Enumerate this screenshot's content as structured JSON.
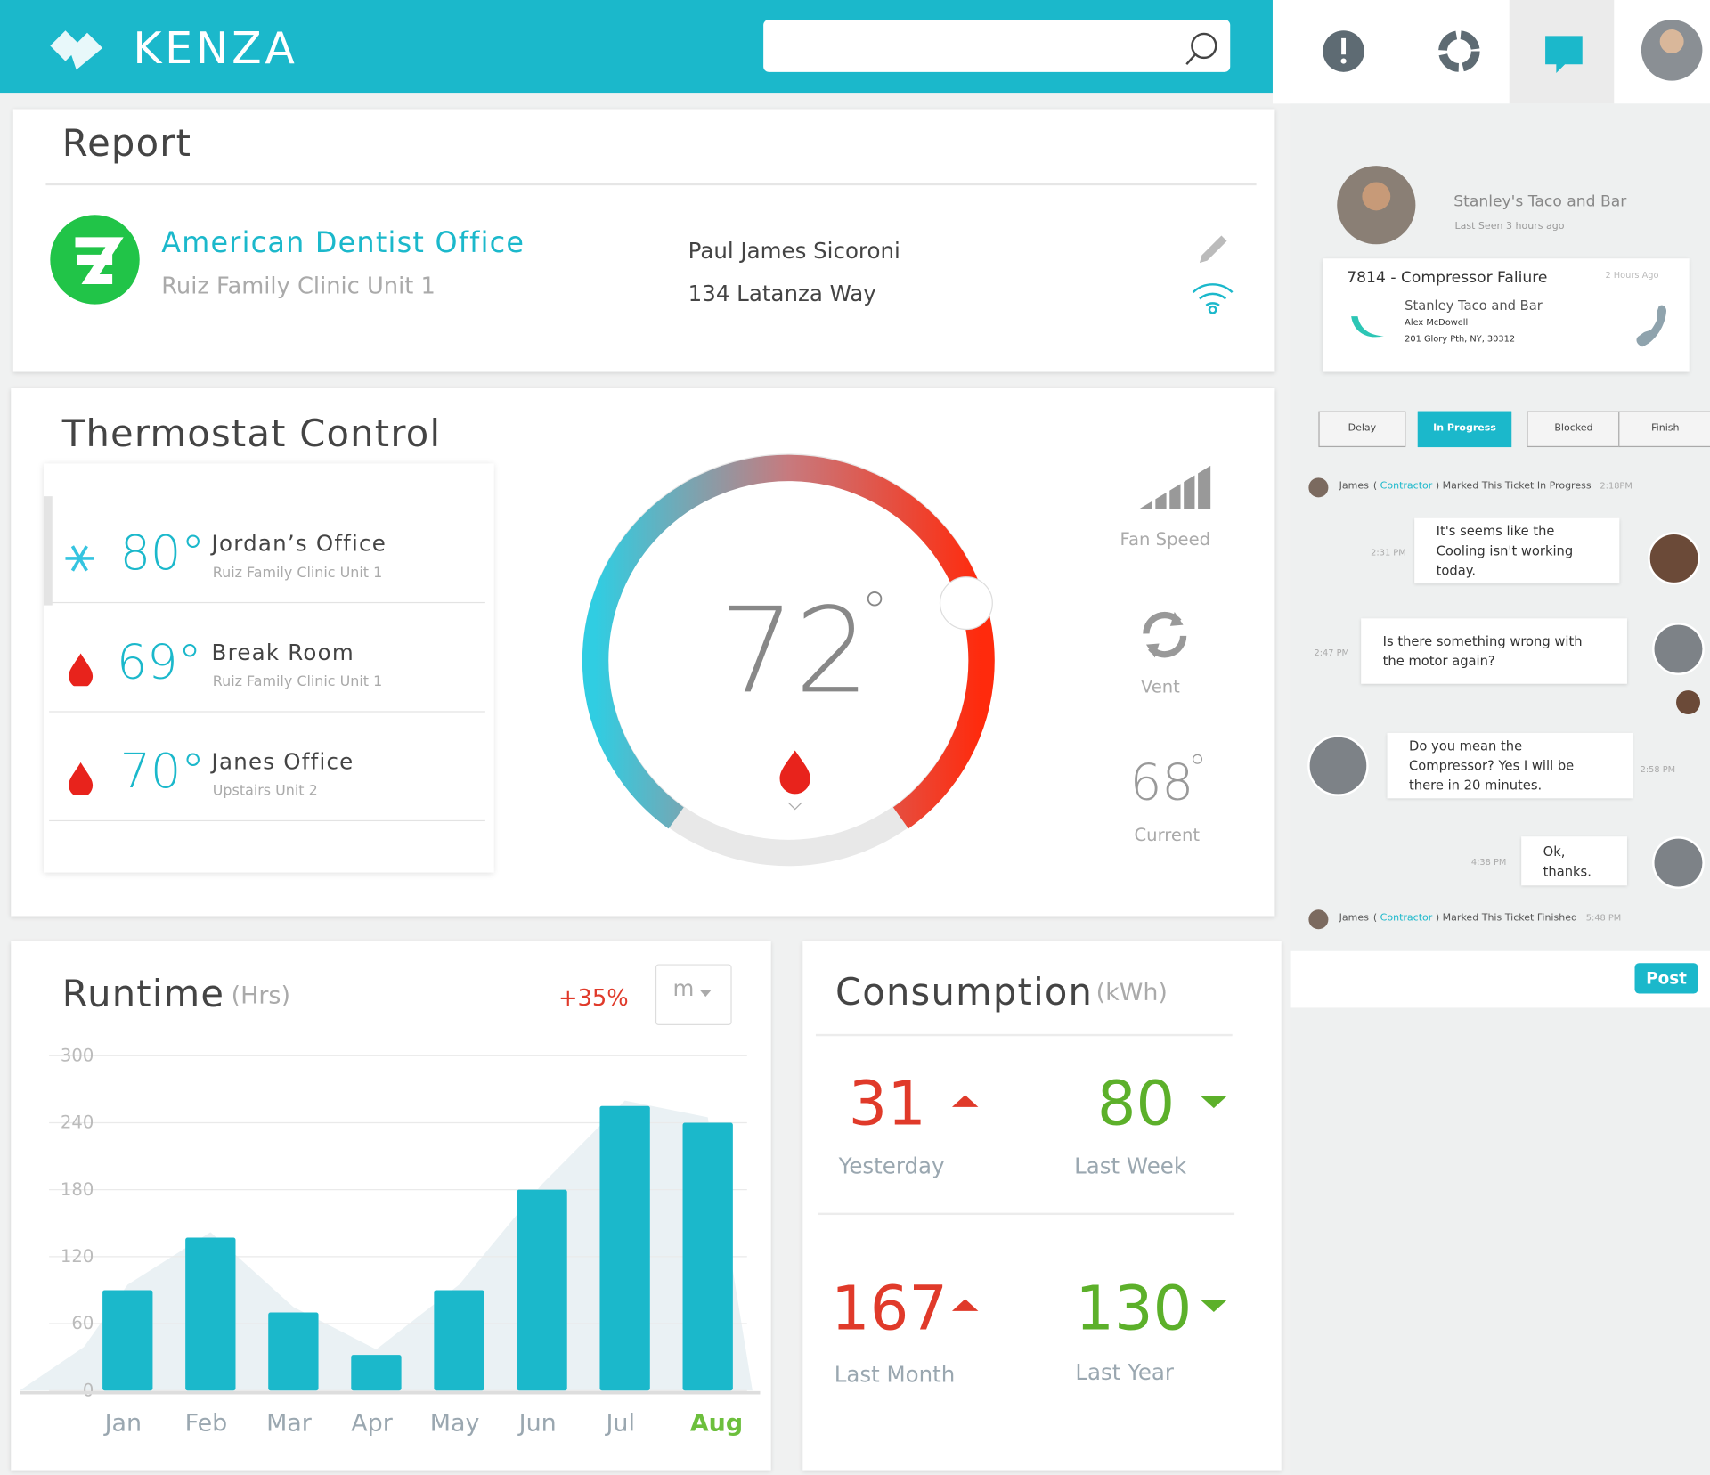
{
  "header": {
    "logo": "KENZA"
  },
  "report": {
    "title": "Report",
    "company": "American Dentist Office",
    "unit": "Ruiz Family Clinic Unit 1",
    "contact": "Paul James Sicoroni",
    "address": "134 Latanza Way"
  },
  "thermostat": {
    "title": "Thermostat Control",
    "zones": [
      {
        "temp": "80°",
        "name": "Jordan’s Office",
        "unit": "Ruiz Family Clinic Unit 1",
        "mode": "cool"
      },
      {
        "temp": "69°",
        "name": "Break Room",
        "unit": "Ruiz Family Clinic Unit 1",
        "mode": "heat"
      },
      {
        "temp": "70°",
        "name": "Janes Office",
        "unit": "Upstairs Unit 2",
        "mode": "heat"
      }
    ],
    "setpoint": "72",
    "fan_speed": "Fan Speed",
    "vent": "Vent",
    "current_temp": "68",
    "current_label": "Current"
  },
  "runtime": {
    "type": "bar",
    "title": "Runtime",
    "unit": "(Hrs)",
    "change": "+35%",
    "period": "m",
    "categories": [
      "Jan",
      "Feb",
      "Mar",
      "Apr",
      "May",
      "Jun",
      "Jul",
      "Aug"
    ],
    "values": [
      90,
      137,
      70,
      32,
      90,
      180,
      255,
      240
    ],
    "ylim": [
      0,
      300
    ],
    "yticks": [
      0,
      60,
      120,
      180,
      240,
      300
    ],
    "color": "#1bb8cb"
  },
  "consumption": {
    "title": "Consumption",
    "unit": "(kWh)",
    "stats": [
      {
        "value": "31",
        "label": "Yesterday",
        "trend": "up"
      },
      {
        "value": "80",
        "label": "Last Week",
        "trend": "down"
      },
      {
        "value": "167",
        "label": "Last Month",
        "trend": "up"
      },
      {
        "value": "130",
        "label": "Last Year",
        "trend": "down"
      }
    ]
  },
  "ticket": {
    "contact": "Stanley's Taco and Bar",
    "last_seen": "Last Seen 3 hours ago",
    "title": "7814 - Compressor Faliure",
    "age": "2 Hours Ago",
    "business": "Stanley Taco and Bar",
    "person": "Alex McDowell",
    "address": "201 Glory Pth, NY, 30312",
    "statuses": [
      "Delay",
      "In Progress",
      "Blocked",
      "Finish"
    ],
    "active_status": 1
  },
  "activity": [
    {
      "name": "James",
      "role": "Contractor",
      "text": "Marked This Ticket In Progress",
      "time": "2:18PM"
    },
    {
      "name": "James",
      "role": "Contractor",
      "text": "Marked This Ticket Finished",
      "time": "5:48 PM"
    }
  ],
  "messages": [
    {
      "time": "2:31 PM",
      "text": "It's seems like the Cooling isn't working today."
    },
    {
      "time": "2:47 PM",
      "text": "Is there something wrong with the motor again?"
    },
    {
      "time": "2:58 PM",
      "text": "Do you mean the Compressor? Yes I will be there in 20 minutes."
    },
    {
      "time": "4:38 PM",
      "text": "Ok, thanks."
    }
  ],
  "post": "Post"
}
